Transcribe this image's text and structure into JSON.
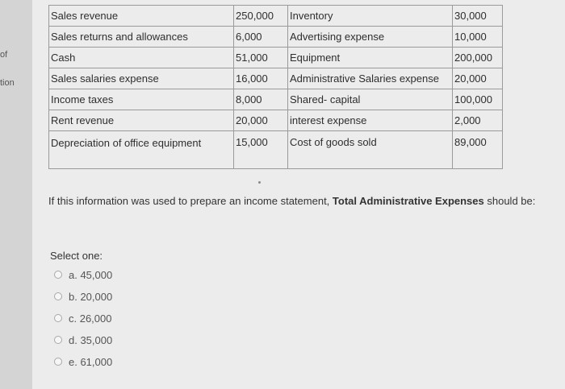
{
  "left_edge": {
    "fragment_1": "of",
    "fragment_2": "tion"
  },
  "table": {
    "rows": [
      {
        "left_label": "Sales revenue",
        "left_value": "250,000",
        "right_label": "Inventory",
        "right_value": "30,000"
      },
      {
        "left_label": "Sales returns and allowances",
        "left_value": "6,000",
        "right_label": "Advertising expense",
        "right_value": "10,000"
      },
      {
        "left_label": "Cash",
        "left_value": "51,000",
        "right_label": "Equipment",
        "right_value": "200,000"
      },
      {
        "left_label": "Sales salaries expense",
        "left_value": "16,000",
        "right_label": "Administrative Salaries expense",
        "right_value": "20,000"
      },
      {
        "left_label": "Income taxes",
        "left_value": "8,000",
        "right_label": "Shared- capital",
        "right_value": "100,000"
      },
      {
        "left_label": "Rent revenue",
        "left_value": "20,000",
        "right_label": "interest expense",
        "right_value": "2,000"
      },
      {
        "left_label": "Depreciation of office equipment",
        "left_value": "15,000",
        "right_label": "Cost of goods sold",
        "right_value": "89,000"
      }
    ]
  },
  "question": {
    "prefix": "If this information was used to prepare an income statement, ",
    "emphasis": "Total Administrative Expenses",
    "suffix": " should be:"
  },
  "answer": {
    "prompt": "Select one:",
    "options": [
      {
        "label": "a. 45,000"
      },
      {
        "label": "b. 20,000"
      },
      {
        "label": "c. 26,000"
      },
      {
        "label": "d. 35,000"
      },
      {
        "label": "e. 61,000"
      }
    ]
  }
}
